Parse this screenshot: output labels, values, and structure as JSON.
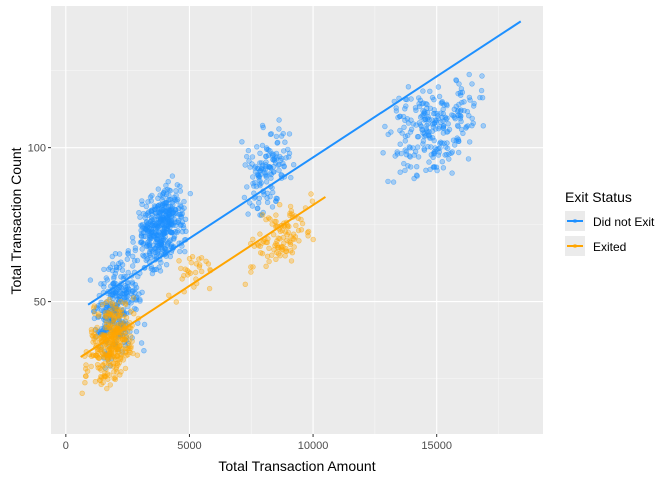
{
  "chart_data": {
    "type": "scatter",
    "title": "",
    "xlabel": "Total Transaction Amount",
    "ylabel": "Total Transaction Count",
    "xlim": [
      -600,
      19300
    ],
    "ylim": [
      7,
      146
    ],
    "x_ticks": [
      0,
      5000,
      10000,
      15000
    ],
    "x_tick_labels": [
      "0",
      "5000",
      "10000",
      "15000"
    ],
    "y_ticks": [
      50,
      100
    ],
    "y_tick_labels": [
      "50",
      "100"
    ],
    "grid": true,
    "legend": {
      "title": "Exit Status",
      "placement": "right"
    },
    "series": [
      {
        "name": "Did not Exit",
        "color": "#1E90FF",
        "trend_line": {
          "x": [
            900,
            18400
          ],
          "y": [
            49,
            141
          ]
        },
        "clusters": [
          {
            "x_range": [
              700,
              3500
            ],
            "y_range": [
              14,
              82
            ],
            "n": 300
          },
          {
            "x_range": [
              2500,
              5200
            ],
            "y_range": [
              46,
              102
            ],
            "n": 420
          },
          {
            "x_range": [
              6800,
              9500
            ],
            "y_range": [
              62,
              121
            ],
            "n": 140
          },
          {
            "x_range": [
              12500,
              17500
            ],
            "y_range": [
              76,
              138
            ],
            "n": 260
          }
        ]
      },
      {
        "name": "Exited",
        "color": "#FFA500",
        "trend_line": {
          "x": [
            600,
            10500
          ],
          "y": [
            32,
            84
          ]
        },
        "clusters": [
          {
            "x_range": [
              500,
              3200
            ],
            "y_range": [
              11,
              62
            ],
            "n": 320
          },
          {
            "x_range": [
              3500,
              6500
            ],
            "y_range": [
              40,
              78
            ],
            "n": 30
          },
          {
            "x_range": [
              7000,
              10500
            ],
            "y_range": [
              50,
              92
            ],
            "n": 110
          }
        ]
      }
    ]
  }
}
